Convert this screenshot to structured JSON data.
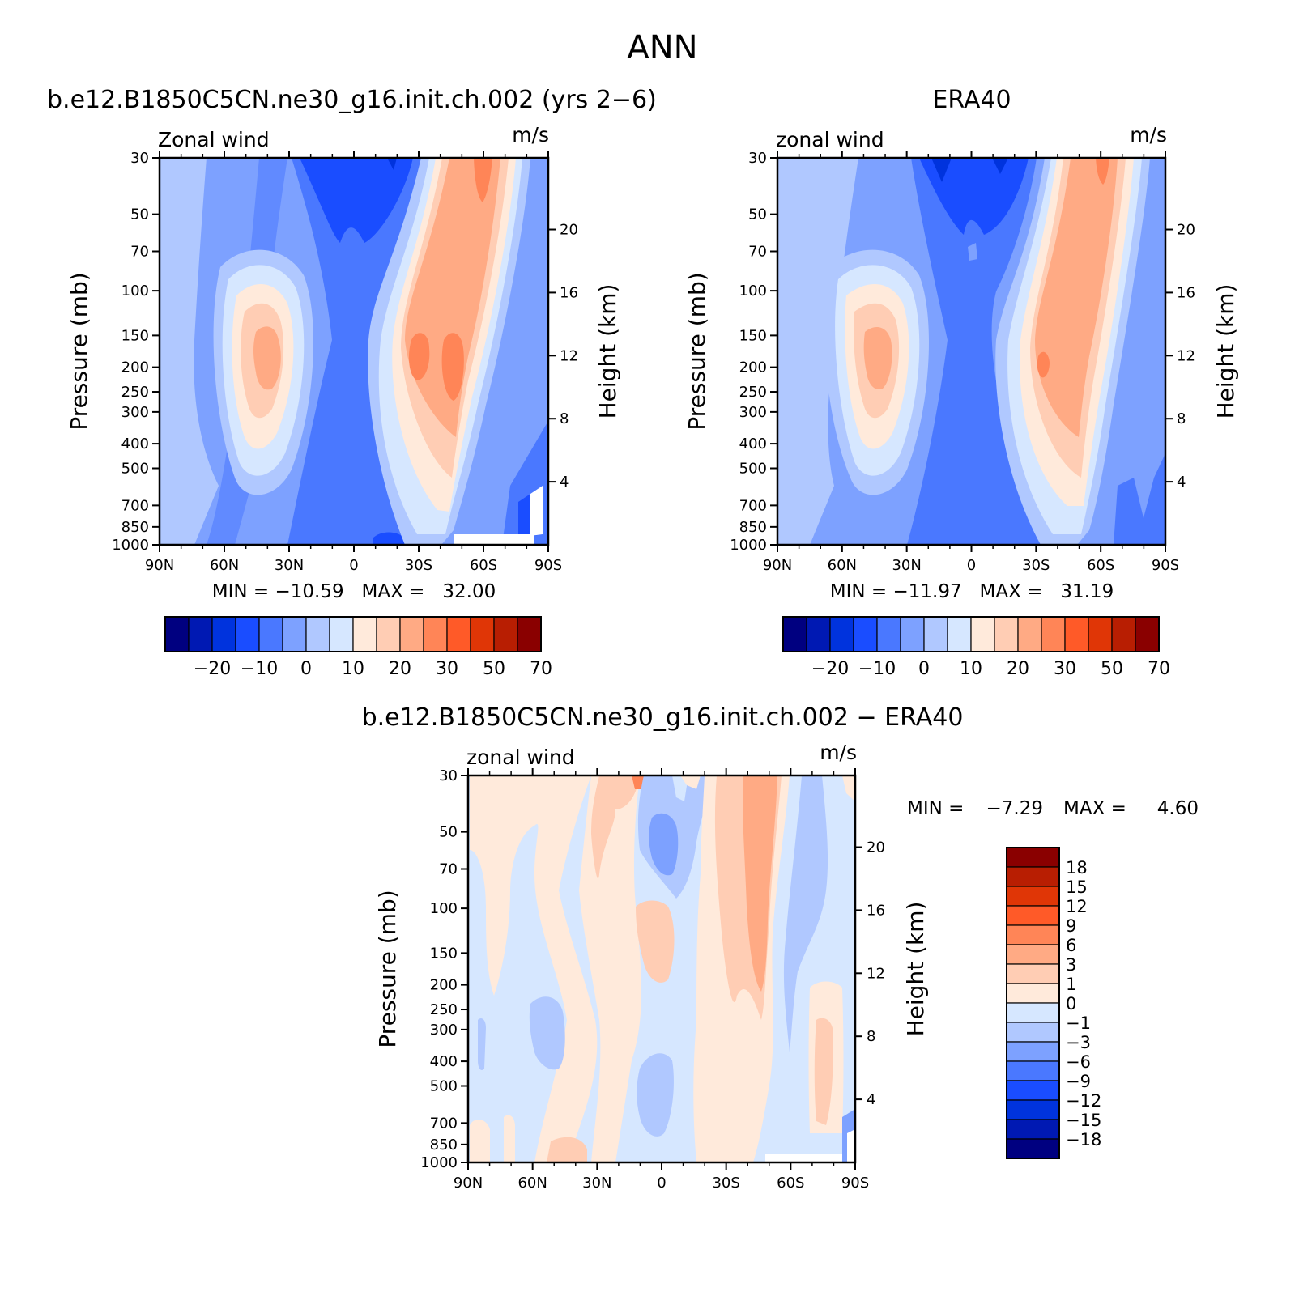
{
  "figure": {
    "title": "ANN"
  },
  "colors": {
    "cb_main": [
      "#000080",
      "#0019b3",
      "#0033dd",
      "#1a4dff",
      "#4a78ff",
      "#7da1ff",
      "#b0c8ff",
      "#d6e7ff",
      "#ffeadb",
      "#ffcdb4",
      "#ffaa84",
      "#ff8557",
      "#ff5a28",
      "#e03606",
      "#b81e02",
      "#8a0000"
    ],
    "cb_diff": [
      "#8a0000",
      "#b81e02",
      "#e03606",
      "#ff5a28",
      "#ff8557",
      "#ffaa84",
      "#ffcdb4",
      "#ffeadb",
      "#d6e7ff",
      "#b0c8ff",
      "#7da1ff",
      "#4a78ff",
      "#1a4dff",
      "#0033dd",
      "#0019b3",
      "#000080"
    ]
  },
  "chart_data": [
    {
      "type": "heatmap",
      "title": "b.e12.B1850C5CN.ne30_g16.init.ch.002 (yrs 2−6)",
      "subtitle_left": "Zonal wind",
      "subtitle_right": "m/s",
      "ylabel": "Pressure (mb)",
      "ylabel_right": "Height (km)",
      "x_ticks": [
        "90N",
        "60N",
        "30N",
        "0",
        "30S",
        "60S",
        "90S"
      ],
      "y_ticks": [
        "30",
        "50",
        "70",
        "100",
        "150",
        "200",
        "250",
        "300",
        "400",
        "500",
        "700",
        "850",
        "1000"
      ],
      "y_ticks_right": [
        "20",
        "16",
        "12",
        "8",
        "4"
      ],
      "stats": "MIN = −10.59   MAX =   32.00",
      "min": -10.59,
      "max": 32.0,
      "colorbar_labels": [
        "−20",
        "−10",
        "0",
        "10",
        "20",
        "30",
        "50",
        "70"
      ],
      "ylim": [
        1000,
        30
      ],
      "xlim": [
        90,
        -90
      ]
    },
    {
      "type": "heatmap",
      "title": "ERA40",
      "subtitle_left": "zonal wind",
      "subtitle_right": "m/s",
      "ylabel": "Pressure (mb)",
      "ylabel_right": "Height (km)",
      "x_ticks": [
        "90N",
        "60N",
        "30N",
        "0",
        "30S",
        "60S",
        "90S"
      ],
      "y_ticks": [
        "30",
        "50",
        "70",
        "100",
        "150",
        "200",
        "250",
        "300",
        "400",
        "500",
        "700",
        "850",
        "1000"
      ],
      "y_ticks_right": [
        "20",
        "16",
        "12",
        "8",
        "4"
      ],
      "stats": "MIN = −11.97   MAX =   31.19",
      "min": -11.97,
      "max": 31.19,
      "colorbar_labels": [
        "−20",
        "−10",
        "0",
        "10",
        "20",
        "30",
        "50",
        "70"
      ],
      "ylim": [
        1000,
        30
      ],
      "xlim": [
        90,
        -90
      ]
    },
    {
      "type": "heatmap",
      "title": "b.e12.B1850C5CN.ne30_g16.init.ch.002 − ERA40",
      "subtitle_left": "zonal wind",
      "subtitle_right": "m/s",
      "ylabel": "Pressure (mb)",
      "ylabel_right": "Height (km)",
      "x_ticks": [
        "90N",
        "60N",
        "30N",
        "0",
        "30S",
        "60S",
        "90S"
      ],
      "y_ticks": [
        "30",
        "50",
        "70",
        "100",
        "150",
        "200",
        "250",
        "300",
        "400",
        "500",
        "700",
        "850",
        "1000"
      ],
      "y_ticks_right": [
        "20",
        "16",
        "12",
        "8",
        "4"
      ],
      "stats_min_label": "MIN =",
      "stats_min_value": "−7.29",
      "stats_max_label": "MAX =",
      "stats_max_value": "4.60",
      "min": -7.29,
      "max": 4.6,
      "colorbar_labels": [
        "18",
        "15",
        "12",
        "9",
        "6",
        "3",
        "1",
        "0",
        "−1",
        "−3",
        "−6",
        "−9",
        "−12",
        "−15",
        "−18"
      ],
      "ylim": [
        1000,
        30
      ],
      "xlim": [
        90,
        -90
      ]
    }
  ]
}
